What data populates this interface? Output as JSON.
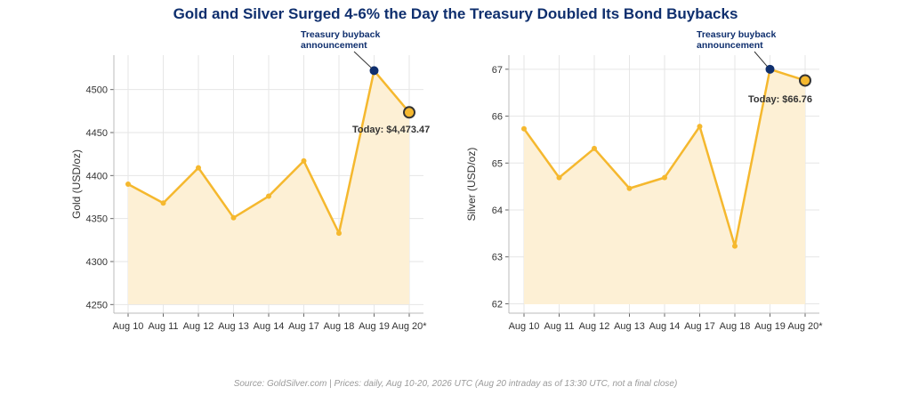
{
  "title": "Gold and Silver Surged 4-6% the Day the Treasury Doubled Its Bond Buybacks",
  "source": "Source: GoldSilver.com | Prices: daily, Aug 10-20, 2026 UTC (Aug 20 intraday as of 13:30 UTC, not a final close)",
  "colors": {
    "line": "#f5b82e",
    "fill": "#fdf0d5",
    "highlight": "#0f2f6e",
    "grid": "#e6e6e6"
  },
  "chart_data": [
    {
      "type": "line",
      "categories": [
        "Aug 10",
        "Aug 11",
        "Aug 12",
        "Aug 13",
        "Aug 14",
        "Aug 17",
        "Aug 18",
        "Aug 19",
        "Aug 20*"
      ],
      "values": [
        4390,
        4368,
        4409,
        4351,
        4376,
        4417,
        4333,
        4522,
        4473.47
      ],
      "ylabel": "Gold (USD/oz)",
      "ylim": [
        4240,
        4540
      ],
      "yticks": [
        4250,
        4300,
        4350,
        4400,
        4450,
        4500
      ],
      "highlight_index": 7,
      "today_index": 8,
      "annotation": "Treasury buyback\nannouncement",
      "today_label": "Today: $4,473.47"
    },
    {
      "type": "line",
      "categories": [
        "Aug 10",
        "Aug 11",
        "Aug 12",
        "Aug 13",
        "Aug 14",
        "Aug 17",
        "Aug 18",
        "Aug 19",
        "Aug 20*"
      ],
      "values": [
        65.73,
        64.69,
        65.31,
        64.46,
        64.69,
        65.78,
        63.23,
        67.0,
        66.76
      ],
      "ylabel": "Silver (USD/oz)",
      "ylim": [
        61.8,
        67.3
      ],
      "yticks": [
        62,
        63,
        64,
        65,
        66,
        67
      ],
      "highlight_index": 7,
      "today_index": 8,
      "annotation": "Treasury buyback\nannouncement",
      "today_label": "Today: $66.76"
    }
  ]
}
